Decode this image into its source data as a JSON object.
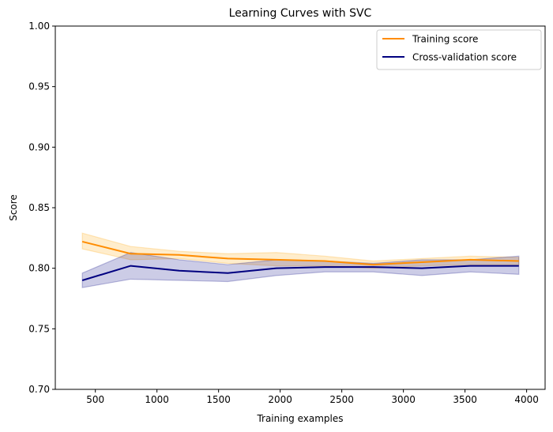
{
  "chart_data": {
    "type": "line",
    "title": "Learning Curves with SVC",
    "xlabel": "Training examples",
    "ylabel": "Score",
    "xlim": [
      175,
      4150
    ],
    "ylim": [
      0.7,
      1.0
    ],
    "xticks": [
      500,
      1000,
      1500,
      2000,
      2500,
      3000,
      3500,
      4000
    ],
    "xtick_labels": [
      "500",
      "1000",
      "1500",
      "2000",
      "2500",
      "3000",
      "3500",
      "4000"
    ],
    "yticks": [
      0.7,
      0.75,
      0.8,
      0.85,
      0.9,
      0.95,
      1.0
    ],
    "ytick_labels": [
      "0.70",
      "0.75",
      "0.80",
      "0.85",
      "0.90",
      "0.95",
      "1.00"
    ],
    "grid": false,
    "legend_position": "top-right",
    "x": [
      394,
      787,
      1181,
      1575,
      1969,
      2362,
      2756,
      3150,
      3543,
      3937
    ],
    "series": [
      {
        "name": "Training score",
        "color": "#ff8c00",
        "band_color": "#ffa500",
        "values": [
          0.822,
          0.812,
          0.811,
          0.808,
          0.807,
          0.806,
          0.803,
          0.805,
          0.807,
          0.806
        ],
        "lower": [
          0.816,
          0.807,
          0.808,
          0.804,
          0.802,
          0.802,
          0.8,
          0.802,
          0.803,
          0.803
        ],
        "upper": [
          0.829,
          0.818,
          0.814,
          0.812,
          0.813,
          0.81,
          0.806,
          0.808,
          0.81,
          0.809
        ]
      },
      {
        "name": "Cross-validation score",
        "color": "#000080",
        "band_color": "#000080",
        "values": [
          0.79,
          0.802,
          0.798,
          0.796,
          0.8,
          0.801,
          0.801,
          0.8,
          0.802,
          0.802
        ],
        "lower": [
          0.784,
          0.791,
          0.79,
          0.789,
          0.794,
          0.797,
          0.797,
          0.794,
          0.797,
          0.795
        ],
        "upper": [
          0.796,
          0.813,
          0.807,
          0.803,
          0.807,
          0.806,
          0.804,
          0.807,
          0.807,
          0.81
        ]
      }
    ]
  }
}
